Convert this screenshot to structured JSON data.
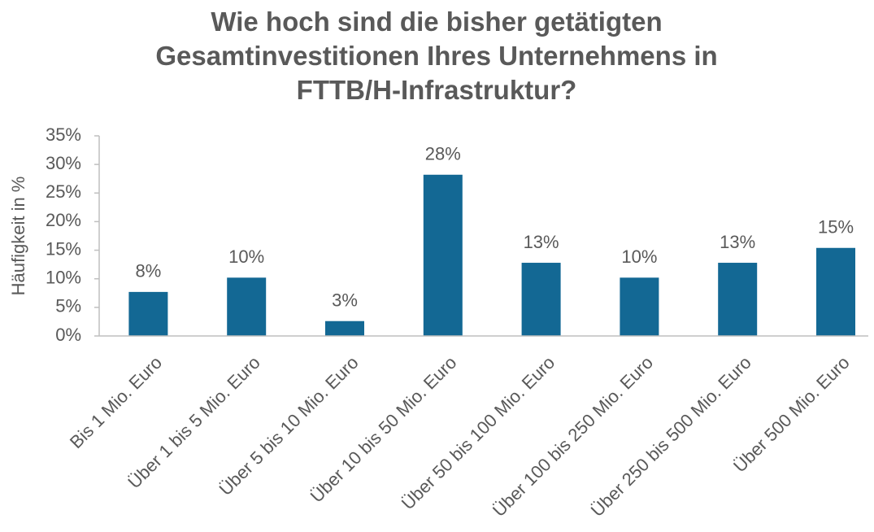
{
  "chart_data": {
    "type": "bar",
    "title": "Wie hoch sind die bisher getätigten Gesamtinvestitionen Ihres Unternehmens in FTTB/H-Infrastruktur?",
    "y_label": "Häufigkeit in %",
    "categories": [
      "Bis 1 Mio. Euro",
      "Über 1 bis 5 Mio. Euro",
      "Über 5 bis 10 Mio. Euro",
      "Über 10 bis 50 Mio. Euro",
      "Über 50 bis 100 Mio. Euro",
      "Über 100 bis 250 Mio. Euro",
      "Über 250 bis 500 Mio. Euro",
      "Über 500 Mio. Euro"
    ],
    "values": [
      7.7,
      10.2,
      2.6,
      28.2,
      12.8,
      10.2,
      12.8,
      15.4
    ],
    "value_labels": [
      "8%",
      "10%",
      "3%",
      "28%",
      "13%",
      "10%",
      "13%",
      "15%"
    ],
    "color": "#136894",
    "ylim": [
      0,
      35
    ],
    "yticks": [
      {
        "value": 0,
        "label": "0%"
      },
      {
        "value": 5,
        "label": "5%"
      },
      {
        "value": 10,
        "label": "10%"
      },
      {
        "value": 15,
        "label": "15%"
      },
      {
        "value": 20,
        "label": "20%"
      },
      {
        "value": 25,
        "label": "25%"
      },
      {
        "value": 30,
        "label": "30%"
      },
      {
        "value": 35,
        "label": "35%"
      }
    ],
    "grid": false
  }
}
